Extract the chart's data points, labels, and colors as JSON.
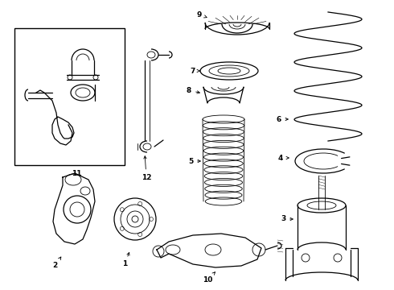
{
  "bg_color": "#ffffff",
  "line_color": "#000000",
  "figsize": [
    4.9,
    3.6
  ],
  "dpi": 100
}
